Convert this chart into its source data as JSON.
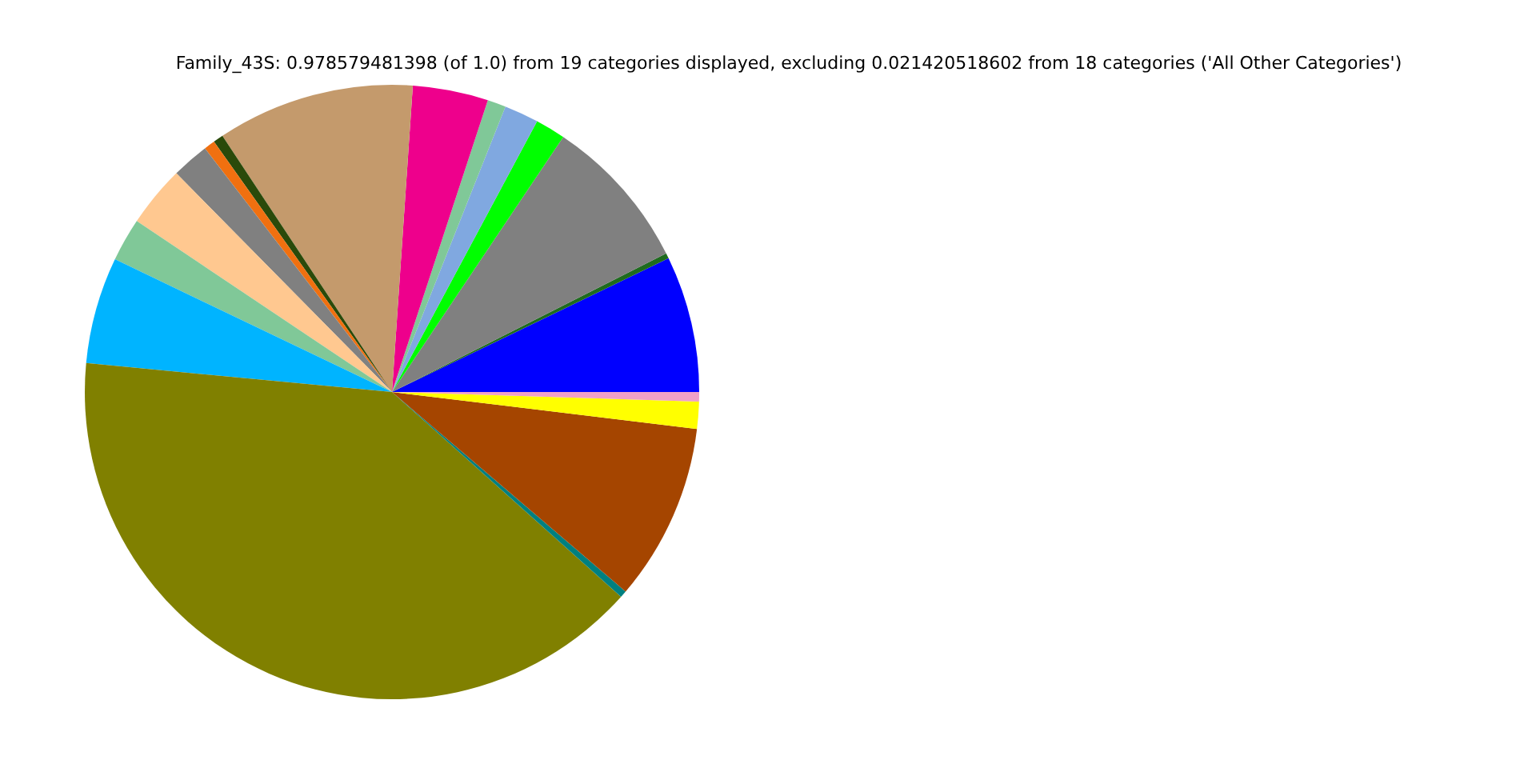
{
  "chart_data": {
    "type": "pie",
    "title": "Family_43S: 0.978579481398 (of 1.0) from 19 categories displayed, excluding 0.021420518602 from 18 categories ('All Other Categories')",
    "categories": [
      null,
      null,
      null,
      null,
      null,
      null,
      null,
      null,
      null,
      null,
      null,
      null,
      null,
      null,
      null,
      null,
      null,
      null,
      null
    ],
    "values": [
      7.17,
      0.28,
      8.14,
      1.58,
      1.81,
      0.97,
      3.97,
      10.39,
      0.53,
      0.58,
      1.97,
      3.22,
      2.28,
      5.61,
      39.89,
      0.36,
      9.33,
      1.42,
      0.5
    ],
    "colors": [
      "#0000ff",
      "#1e6b1e",
      "#808080",
      "#00ff00",
      "#80a8e0",
      "#80c898",
      "#ee008c",
      "#c49a6c",
      "#2a4a0a",
      "#f07010",
      "#808080",
      "#ffc890",
      "#80c898",
      "#00b4ff",
      "#808000",
      "#008080",
      "#a54500",
      "#ffff00",
      "#f0a0c8"
    ],
    "legend": false
  }
}
